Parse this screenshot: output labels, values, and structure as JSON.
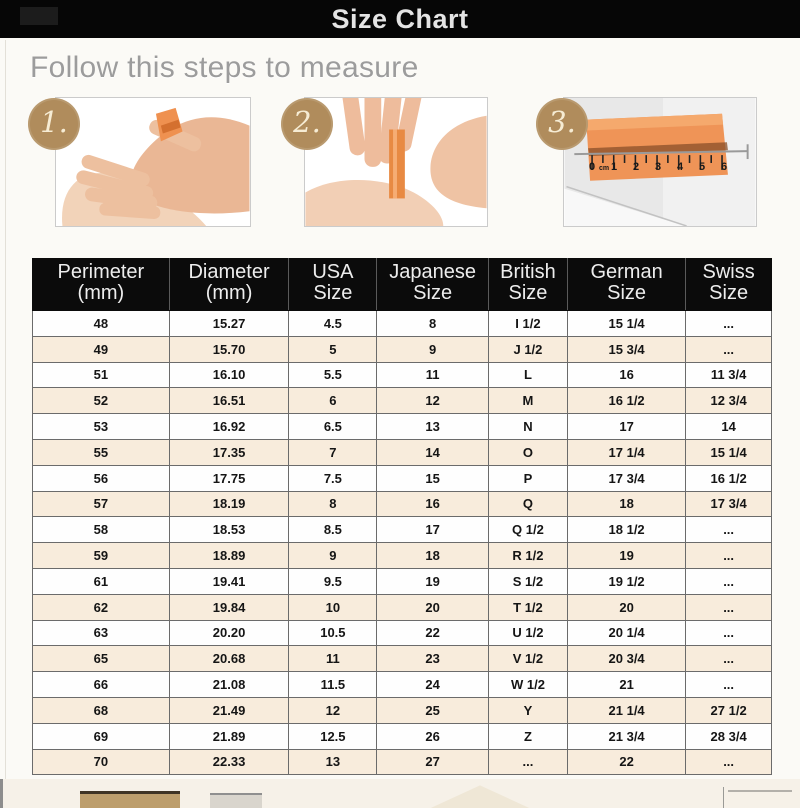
{
  "header": {
    "title": "Size Chart"
  },
  "instructions": {
    "heading": "Follow this steps to measure",
    "steps": [
      {
        "number": "1.",
        "photo": "hand with orange tape wrapped around ring finger"
      },
      {
        "number": "2.",
        "photo": "fingers pinching tape to mark finger size"
      },
      {
        "number": "3.",
        "photo": "tape strip measured against ruler",
        "ruler_labels": [
          "0",
          "cm",
          "1",
          "2",
          "3",
          "4",
          "5",
          "6"
        ]
      }
    ]
  },
  "chart_data": {
    "type": "table",
    "title": "Size Chart",
    "columns": [
      {
        "line1": "Perimeter",
        "line2": "(mm)"
      },
      {
        "line1": "Diameter",
        "line2": "(mm)"
      },
      {
        "line1": "USA",
        "line2": "Size"
      },
      {
        "line1": "Japanese",
        "line2": "Size"
      },
      {
        "line1": "British",
        "line2": "Size"
      },
      {
        "line1": "German",
        "line2": "Size"
      },
      {
        "line1": "Swiss",
        "line2": "Size"
      }
    ],
    "rows": [
      [
        "48",
        "15.27",
        "4.5",
        "8",
        "I 1/2",
        "15 1/4",
        "..."
      ],
      [
        "49",
        "15.70",
        "5",
        "9",
        "J 1/2",
        "15 3/4",
        "..."
      ],
      [
        "51",
        "16.10",
        "5.5",
        "11",
        "L",
        "16",
        "11 3/4"
      ],
      [
        "52",
        "16.51",
        "6",
        "12",
        "M",
        "16 1/2",
        "12 3/4"
      ],
      [
        "53",
        "16.92",
        "6.5",
        "13",
        "N",
        "17",
        "14"
      ],
      [
        "55",
        "17.35",
        "7",
        "14",
        "O",
        "17 1/4",
        "15 1/4"
      ],
      [
        "56",
        "17.75",
        "7.5",
        "15",
        "P",
        "17 3/4",
        "16 1/2"
      ],
      [
        "57",
        "18.19",
        "8",
        "16",
        "Q",
        "18",
        "17 3/4"
      ],
      [
        "58",
        "18.53",
        "8.5",
        "17",
        "Q 1/2",
        "18 1/2",
        "..."
      ],
      [
        "59",
        "18.89",
        "9",
        "18",
        "R 1/2",
        "19",
        "..."
      ],
      [
        "61",
        "19.41",
        "9.5",
        "19",
        "S 1/2",
        "19 1/2",
        "..."
      ],
      [
        "62",
        "19.84",
        "10",
        "20",
        "T 1/2",
        "20",
        "..."
      ],
      [
        "63",
        "20.20",
        "10.5",
        "22",
        "U 1/2",
        "20 1/4",
        "..."
      ],
      [
        "65",
        "20.68",
        "11",
        "23",
        "V 1/2",
        "20 3/4",
        "..."
      ],
      [
        "66",
        "21.08",
        "11.5",
        "24",
        "W 1/2",
        "21",
        "..."
      ],
      [
        "68",
        "21.49",
        "12",
        "25",
        "Y",
        "21 1/4",
        "27 1/2"
      ],
      [
        "69",
        "21.89",
        "12.5",
        "26",
        "Z",
        "21 3/4",
        "28 3/4"
      ],
      [
        "70",
        "22.33",
        "13",
        "27",
        "...",
        "22",
        "..."
      ]
    ]
  },
  "colors": {
    "title_bar_black": "#060606",
    "table_header_black": "#0b0b0b",
    "stripe_peach": "#f8ecdc",
    "badge_gold": "#b08c5c",
    "tape_orange": "#ef9457",
    "subtitle_gray": "#9c9c9c"
  }
}
